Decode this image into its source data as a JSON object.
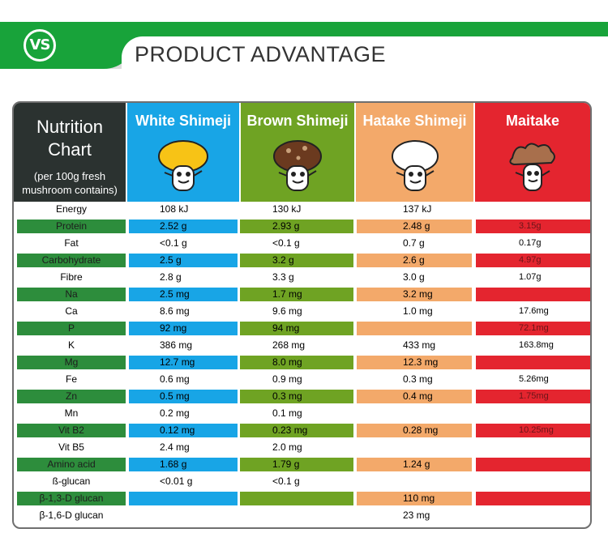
{
  "banner": {
    "logo": "VS",
    "title": "PRODUCT ADVANTAGE"
  },
  "header": {
    "title_line1": "Nutrition",
    "title_line2": "Chart",
    "subtitle_line1": "(per 100g fresh",
    "subtitle_line2": "mushroom contains)",
    "columns": [
      "White Shimeji",
      "Brown Shimeji",
      "Hatake Shimeji",
      "Maitake"
    ]
  },
  "colors": {
    "banner_green": "#18a33a",
    "white_shimeji": "#18a5e6",
    "brown_shimeji": "#6fa323",
    "hatake_shimeji": "#f3a96a",
    "maitake": "#e4252f",
    "title_cell": "#2b3230"
  },
  "icons": [
    "white-shimeji-mushroom-icon",
    "brown-shimeji-mushroom-icon",
    "hatake-shimeji-mushroom-icon",
    "maitake-mushroom-icon"
  ],
  "rows": [
    {
      "name": "Energy",
      "v": [
        "108 kJ",
        "130 kJ",
        "137 kJ",
        ""
      ]
    },
    {
      "name": "Protein",
      "v": [
        "2.52 g",
        "2.93 g",
        "2.48 g",
        "3.15g"
      ]
    },
    {
      "name": "Fat",
      "v": [
        "<0.1 g",
        "<0.1 g",
        "0.7 g",
        "0.17g"
      ]
    },
    {
      "name": "Carbohydrate",
      "v": [
        "2.5 g",
        "3.2 g",
        "2.6 g",
        "4.97g"
      ]
    },
    {
      "name": "Fibre",
      "v": [
        "2.8 g",
        "3.3 g",
        "3.0 g",
        "1.07g"
      ]
    },
    {
      "name": "Na",
      "v": [
        "2.5 mg",
        "1.7 mg",
        "3.2 mg",
        ""
      ]
    },
    {
      "name": "Ca",
      "v": [
        "8.6 mg",
        "9.6 mg",
        "1.0 mg",
        "17.6mg"
      ]
    },
    {
      "name": "P",
      "v": [
        "92 mg",
        "94 mg",
        "",
        "72.1mg"
      ]
    },
    {
      "name": "K",
      "v": [
        "386 mg",
        "268 mg",
        "433 mg",
        "163.8mg"
      ]
    },
    {
      "name": "Mg",
      "v": [
        "12.7 mg",
        "8.0 mg",
        "12.3 mg",
        ""
      ]
    },
    {
      "name": "Fe",
      "v": [
        "0.6 mg",
        "0.9 mg",
        "0.3 mg",
        "5.26mg"
      ]
    },
    {
      "name": "Zn",
      "v": [
        "0.5 mg",
        "0.3 mg",
        "0.4 mg",
        "1.75mg"
      ]
    },
    {
      "name": "Mn",
      "v": [
        "0.2 mg",
        "0.1 mg",
        "",
        ""
      ]
    },
    {
      "name": "Vit B2",
      "v": [
        "0.12 mg",
        "0.23 mg",
        "0.28 mg",
        "10.25mg"
      ]
    },
    {
      "name": "Vit B5",
      "v": [
        "2.4 mg",
        "2.0 mg",
        "",
        ""
      ]
    },
    {
      "name": "Amino acid",
      "v": [
        "1.68 g",
        "1.79 g",
        "1.24 g",
        ""
      ]
    },
    {
      "name": "ß-glucan",
      "v": [
        "<0.01 g",
        "<0.1 g",
        "",
        ""
      ]
    },
    {
      "name": "β-1,3-D glucan",
      "v": [
        "",
        "",
        "110 mg",
        ""
      ]
    },
    {
      "name": "β-1,6-D glucan",
      "v": [
        "",
        "",
        "23 mg",
        ""
      ]
    }
  ]
}
